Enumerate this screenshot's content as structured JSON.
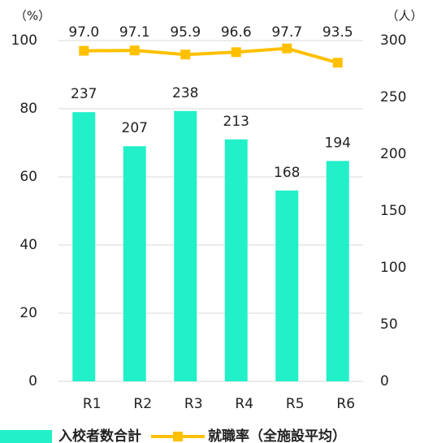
{
  "chart_data": {
    "type": "bar",
    "ylabel": "（%）",
    "y2label": "（人）",
    "categories": [
      "R1",
      "R2",
      "R3",
      "R4",
      "R5",
      "R6"
    ],
    "series": [
      {
        "name": "入校者数合計",
        "type": "bar",
        "axis": "y2",
        "color": "#22f0c8",
        "values": [
          237,
          207,
          238,
          213,
          168,
          194
        ]
      },
      {
        "name": "就職率（全施設平均）",
        "type": "line",
        "axis": "y",
        "color": "#ffc000",
        "values": [
          97.0,
          97.1,
          95.9,
          96.6,
          97.7,
          93.5
        ],
        "value_labels": [
          "97.0",
          "97.1",
          "95.9",
          "96.6",
          "97.7",
          "93.5"
        ]
      }
    ],
    "ylim": [
      0,
      100
    ],
    "yticks": [
      0,
      20,
      40,
      60,
      80,
      100
    ],
    "y2lim": [
      0,
      300
    ],
    "y2ticks": [
      0,
      50,
      100,
      150,
      200,
      250,
      300
    ],
    "grid": true
  }
}
